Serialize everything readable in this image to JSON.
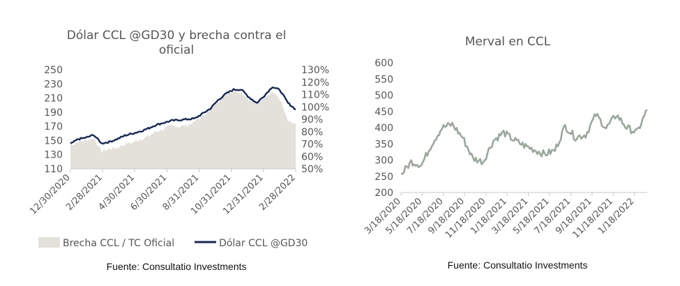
{
  "colors": {
    "area": "#e4e1db",
    "dolar_line": "#15275c",
    "merval_line": "#9aa89c",
    "axis": "#c8c8c8",
    "text": "#555555"
  },
  "chart_data": [
    {
      "type": "line",
      "title": "Dólar CCL @GD30 y brecha contra el oficial",
      "title_lines": [
        "Dólar CCL @GD30 y brecha contra el",
        "oficial"
      ],
      "source": "Fuente: Consultatio Investments",
      "legend": [
        "Brecha CCL / TC Oficial",
        "Dólar CCL @GD30"
      ],
      "legend_position": "bottom",
      "grid": false,
      "x_ticks": [
        "12/30/2020",
        "2/28/2021",
        "4/30/2021",
        "6/30/2021",
        "8/31/2021",
        "10/31/2021",
        "12/31/2021",
        "2/28/2022"
      ],
      "y_left": {
        "ticks": [
          250,
          230,
          210,
          190,
          170,
          150,
          130,
          110
        ],
        "ylim": [
          110,
          250
        ]
      },
      "y_right": {
        "ticks": [
          "130%",
          "120%",
          "110%",
          "100%",
          "90%",
          "80%",
          "70%",
          "60%",
          "50%"
        ],
        "ylim": [
          50,
          130
        ]
      },
      "x": [
        "12/30/2020",
        "1/15/2021",
        "1/31/2021",
        "2/15/2021",
        "2/28/2021",
        "3/15/2021",
        "3/31/2021",
        "4/15/2021",
        "4/30/2021",
        "5/15/2021",
        "5/31/2021",
        "6/15/2021",
        "6/30/2021",
        "7/15/2021",
        "7/31/2021",
        "8/15/2021",
        "8/31/2021",
        "9/15/2021",
        "9/30/2021",
        "10/15/2021",
        "10/31/2021",
        "11/15/2021",
        "11/30/2021",
        "12/15/2021",
        "12/31/2021",
        "1/15/2022",
        "1/31/2022",
        "2/15/2022",
        "2/28/2022",
        "3/10/2022"
      ],
      "series": [
        {
          "name": "Brecha CCL / TC Oficial",
          "axis": "right",
          "kind": "area",
          "values": [
            69,
            72,
            73,
            75,
            64,
            66,
            67,
            70,
            71,
            74,
            76,
            80,
            82,
            85,
            84,
            85,
            88,
            93,
            98,
            105,
            111,
            113,
            112,
            106,
            103,
            109,
            112,
            106,
            88,
            86
          ]
        },
        {
          "name": "Dólar CCL @GD30",
          "axis": "left",
          "kind": "line",
          "values": [
            145,
            152,
            154,
            158,
            146,
            148,
            152,
            157,
            160,
            163,
            167,
            172,
            175,
            178,
            179,
            180,
            181,
            188,
            195,
            207,
            216,
            222,
            222,
            211,
            203,
            214,
            226,
            221,
            203,
            194
          ]
        }
      ]
    },
    {
      "type": "line",
      "title": "Merval en CCL",
      "source": "Fuente: Consultatio Investments",
      "grid": false,
      "x_ticks": [
        "3/18/2020",
        "5/18/2020",
        "7/18/2020",
        "9/18/2020",
        "11/18/2020",
        "1/18/2021",
        "3/18/2021",
        "5/18/2021",
        "7/18/2021",
        "9/18/2021",
        "11/18/2021",
        "1/18/2022"
      ],
      "y": {
        "ticks": [
          600,
          550,
          500,
          450,
          400,
          350,
          300,
          250,
          200
        ],
        "ylim": [
          200,
          600
        ]
      },
      "x": [
        "3/18/2020",
        "4/18/2020",
        "5/18/2020",
        "6/18/2020",
        "7/18/2020",
        "8/18/2020",
        "9/18/2020",
        "10/18/2020",
        "11/18/2020",
        "12/18/2020",
        "1/18/2021",
        "2/18/2021",
        "3/18/2021",
        "4/18/2021",
        "5/18/2021",
        "6/18/2021",
        "7/18/2021",
        "8/18/2021",
        "9/18/2021",
        "10/18/2021",
        "11/18/2021",
        "12/18/2021",
        "1/18/2022",
        "2/18/2022",
        "3/10/2022"
      ],
      "series": [
        {
          "name": "",
          "values": [
            255,
            295,
            285,
            350,
            400,
            410,
            370,
            305,
            295,
            360,
            385,
            362,
            345,
            332,
            318,
            330,
            405,
            370,
            378,
            440,
            398,
            440,
            400,
            385,
            455
          ]
        }
      ]
    }
  ]
}
